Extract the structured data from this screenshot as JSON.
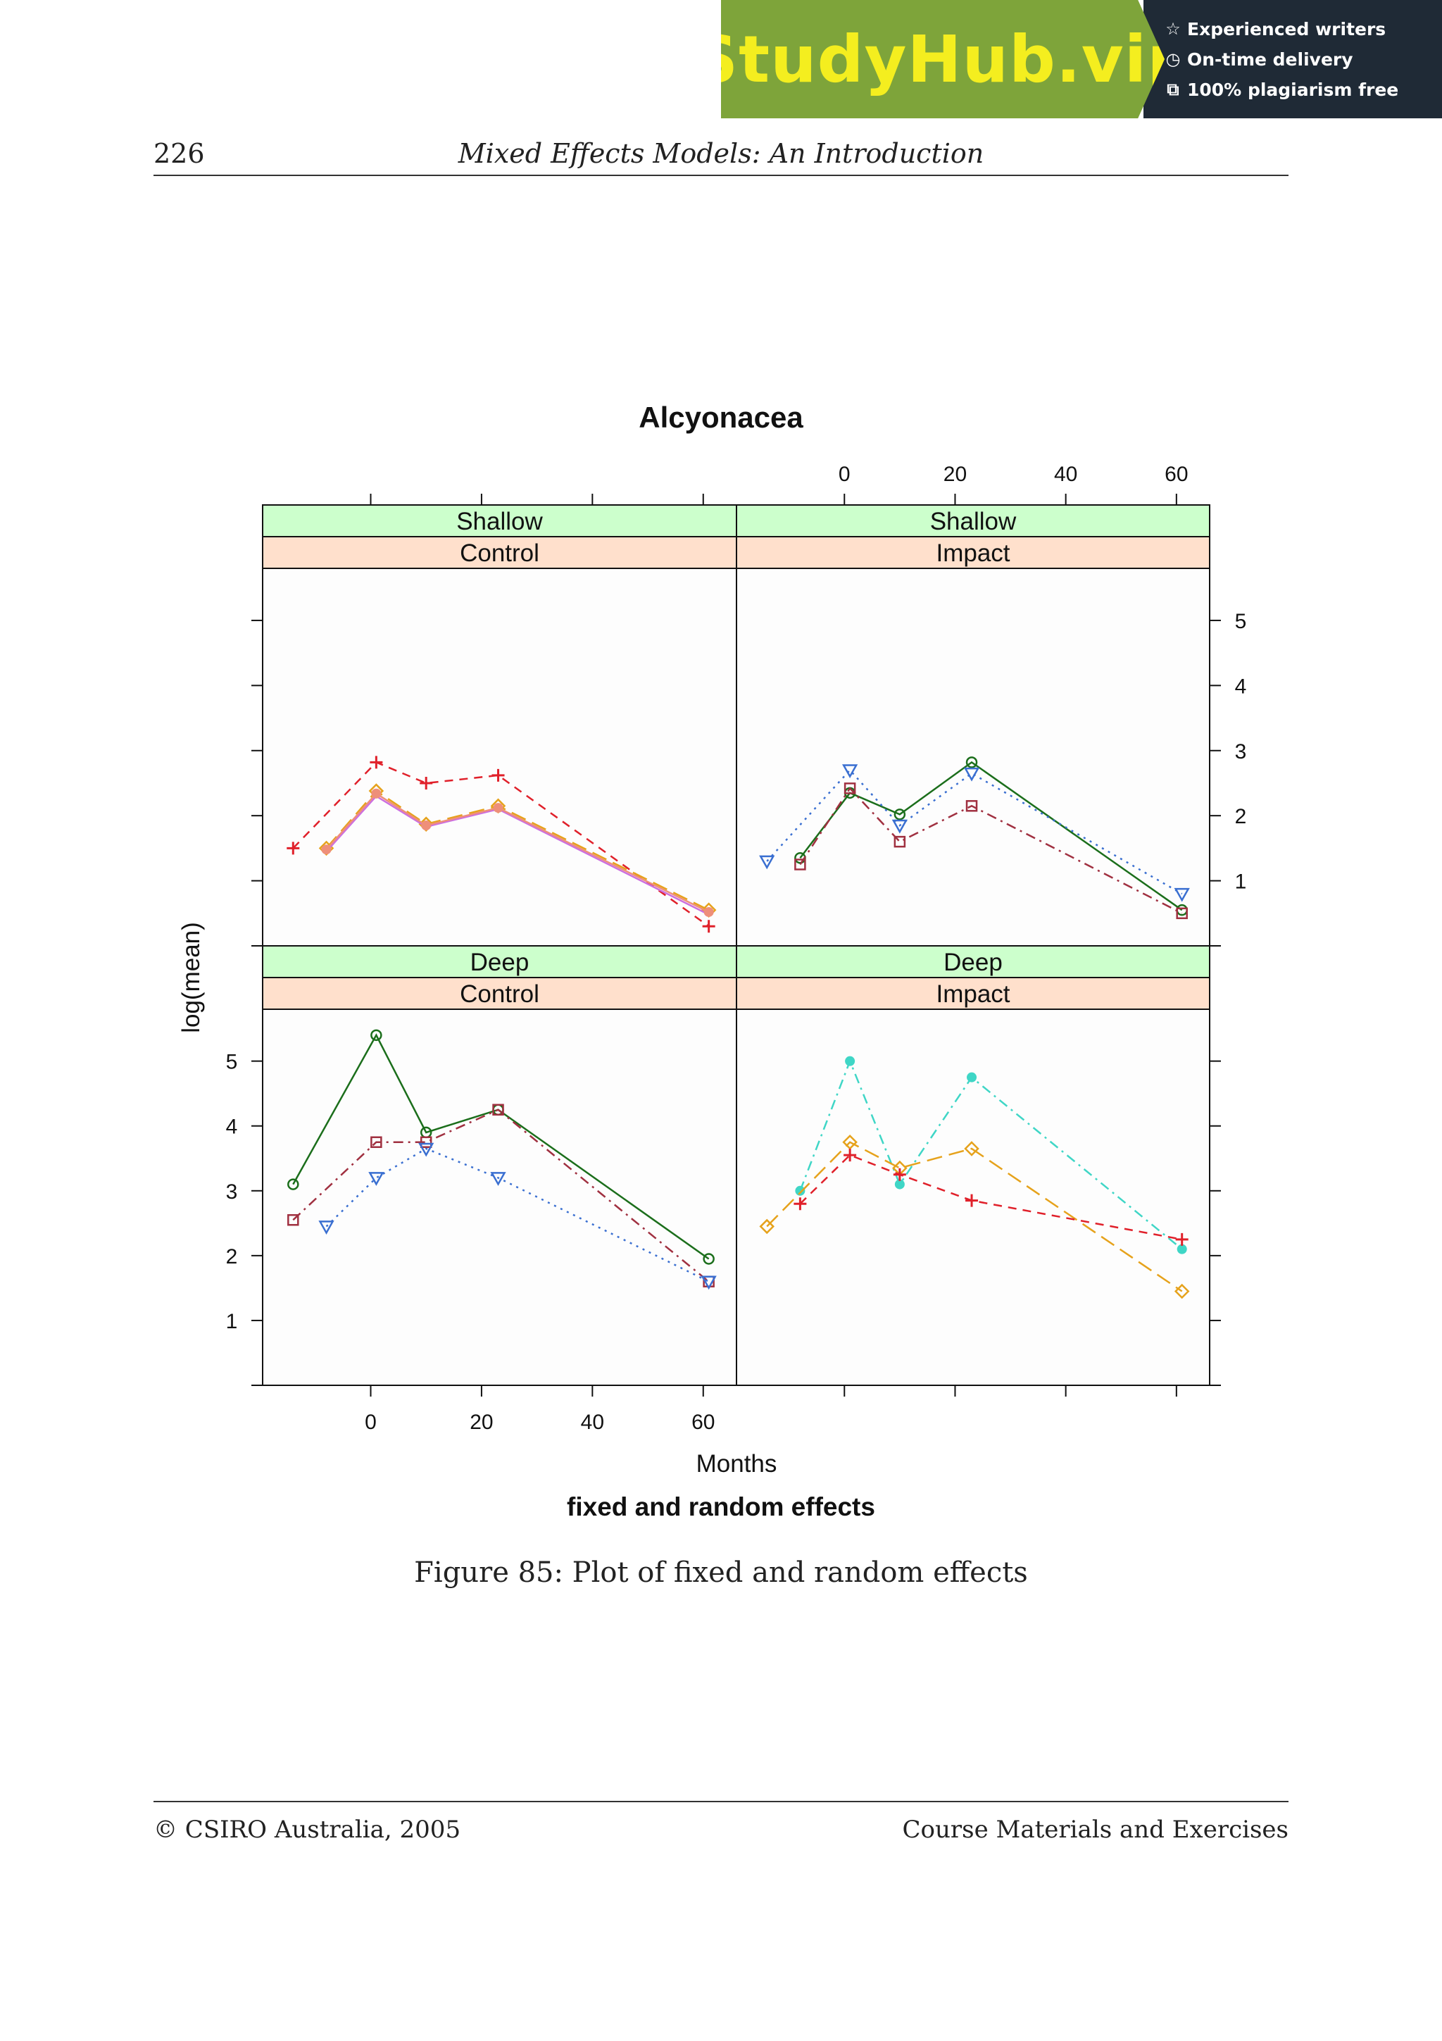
{
  "banner": {
    "brand": "StudyHub.vip",
    "features": [
      {
        "icon": "star-icon",
        "label": "Experienced writers"
      },
      {
        "icon": "clock-icon",
        "label": "On-time delivery"
      },
      {
        "icon": "copy-icon",
        "label": "100% plagiarism free"
      }
    ],
    "colors": {
      "left": "#7ea43a",
      "right": "#1f2a36",
      "brand_text": "#f4ee1f"
    }
  },
  "header": {
    "page_number": "226",
    "running_title": "Mixed Effects Models: An Introduction"
  },
  "caption": "Figure 85: Plot of fixed and random effects",
  "footer": {
    "left": "© CSIRO Australia, 2005",
    "right": "Course Materials and Exercises"
  },
  "chart_data": {
    "type": "line",
    "title": "Alcyonacea",
    "subtitle": "fixed and random effects",
    "xlabel": "Months",
    "ylabel": "log(mean)",
    "xlim": [
      -19.5,
      66
    ],
    "ylim": [
      0,
      5.8
    ],
    "xticks": [
      0,
      20,
      40,
      60
    ],
    "yticks": [
      1,
      2,
      3,
      4,
      5
    ],
    "strip_colors": {
      "top": "#ccffcc",
      "bottom": "#ffe0cc"
    },
    "layout": {
      "columns": 2,
      "rows": 2
    },
    "panels": [
      {
        "row": 0,
        "col": 0,
        "strip_top": "Shallow",
        "strip_bottom": "Control",
        "series": [
          {
            "style": "plus-dashed",
            "color": "#e0202a",
            "x": [
              -14,
              1,
              10,
              23,
              61
            ],
            "y": [
              1.5,
              2.82,
              2.5,
              2.62,
              0.3
            ]
          },
          {
            "style": "diamond-longdash",
            "color": "#e6a21b",
            "x": [
              -8,
              1,
              10,
              23,
              61
            ],
            "y": [
              1.5,
              2.38,
              1.87,
              2.15,
              0.55
            ]
          },
          {
            "style": "solid",
            "color": "#cc6fe0",
            "x": [
              -8,
              1,
              10,
              23,
              61
            ],
            "y": [
              1.45,
              2.3,
              1.83,
              2.1,
              0.48
            ]
          },
          {
            "style": "point",
            "color": "#ee8f7a",
            "x": [
              -8,
              1,
              10,
              23,
              61
            ],
            "y": [
              1.48,
              2.34,
              1.85,
              2.12,
              0.52
            ]
          }
        ]
      },
      {
        "row": 0,
        "col": 1,
        "strip_top": "Shallow",
        "strip_bottom": "Impact",
        "series": [
          {
            "style": "circle-solid",
            "color": "#1b6e1b",
            "x": [
              -8,
              1,
              10,
              23,
              61
            ],
            "y": [
              1.35,
              2.35,
              2.02,
              2.82,
              0.55
            ]
          },
          {
            "style": "triangle-dotted",
            "color": "#3a6fd1",
            "x": [
              -14,
              1,
              10,
              23,
              61
            ],
            "y": [
              1.3,
              2.7,
              1.85,
              2.65,
              0.8
            ]
          },
          {
            "style": "square-dashdot",
            "color": "#a03040",
            "x": [
              -8,
              1,
              10,
              23,
              61
            ],
            "y": [
              1.25,
              2.42,
              1.6,
              2.15,
              0.5
            ]
          }
        ]
      },
      {
        "row": 1,
        "col": 0,
        "strip_top": "Deep",
        "strip_bottom": "Control",
        "series": [
          {
            "style": "circle-solid",
            "color": "#1b6e1b",
            "x": [
              -14,
              1,
              10,
              23,
              61
            ],
            "y": [
              3.1,
              5.4,
              3.9,
              4.25,
              1.95
            ]
          },
          {
            "style": "square-dashdot",
            "color": "#a03040",
            "x": [
              -14,
              1,
              10,
              23,
              61
            ],
            "y": [
              2.55,
              3.75,
              3.75,
              4.25,
              1.6
            ]
          },
          {
            "style": "triangle-dotted",
            "color": "#3a6fd1",
            "x": [
              -8,
              1,
              10,
              23,
              61
            ],
            "y": [
              2.45,
              3.2,
              3.65,
              3.2,
              1.6
            ]
          }
        ]
      },
      {
        "row": 1,
        "col": 1,
        "strip_top": "Deep",
        "strip_bottom": "Impact",
        "series": [
          {
            "style": "dot-dashdot",
            "color": "#3fd6c6",
            "x": [
              -8,
              1,
              10,
              23,
              61
            ],
            "y": [
              3.0,
              5.0,
              3.1,
              4.75,
              2.1
            ]
          },
          {
            "style": "diamond-longdash",
            "color": "#e6a21b",
            "x": [
              -14,
              1,
              10,
              23,
              61
            ],
            "y": [
              2.45,
              3.75,
              3.35,
              3.65,
              1.45
            ]
          },
          {
            "style": "plus-dashed",
            "color": "#e0202a",
            "x": [
              -8,
              1,
              10,
              23,
              61
            ],
            "y": [
              2.8,
              3.55,
              3.25,
              2.85,
              2.25
            ]
          }
        ]
      }
    ]
  }
}
